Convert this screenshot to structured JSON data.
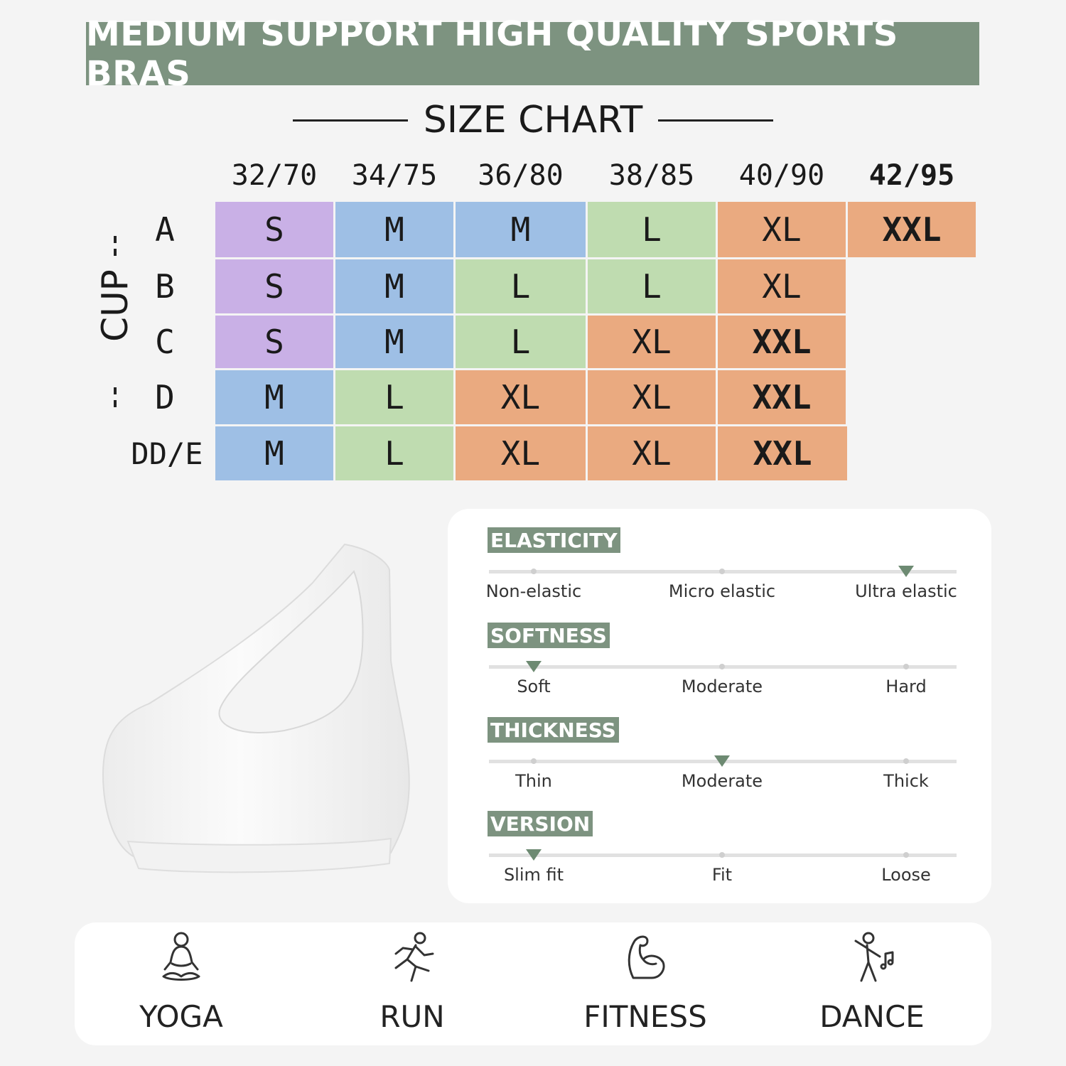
{
  "header": {
    "banner": "MEDIUM SUPPORT HIGH QUALITY SPORTS BRAS",
    "subtitle": "SIZE CHART"
  },
  "size_chart": {
    "axis_label": "CUP",
    "band_sizes": [
      "32/70",
      "34/75",
      "36/80",
      "38/85",
      "40/90",
      "42/95"
    ],
    "rows": [
      {
        "cup": "A",
        "sizes": [
          "S",
          "M",
          "M",
          "L",
          "XL",
          "XXL"
        ]
      },
      {
        "cup": "B",
        "sizes": [
          "S",
          "M",
          "L",
          "L",
          "XL"
        ]
      },
      {
        "cup": "C",
        "sizes": [
          "S",
          "M",
          "L",
          "XL",
          "XXL"
        ]
      },
      {
        "cup": "D",
        "sizes": [
          "M",
          "L",
          "XL",
          "XL",
          "XXL"
        ]
      },
      {
        "cup": "DD/E",
        "sizes": [
          "M",
          "L",
          "XL",
          "XL",
          "XXL"
        ]
      }
    ],
    "size_colors": {
      "S": "#c9b0e6",
      "M": "#9ebfe5",
      "L": "#bfdcb0",
      "XL": "#eaaa80",
      "XXL": "#eaaa80"
    }
  },
  "attributes": [
    {
      "title": "ELASTICITY",
      "options": [
        "Non-elastic",
        "Micro elastic",
        "Ultra elastic"
      ],
      "selected_index": 2
    },
    {
      "title": "SOFTNESS",
      "options": [
        "Soft",
        "Moderate",
        "Hard"
      ],
      "selected_index": 0
    },
    {
      "title": "THICKNESS",
      "options": [
        "Thin",
        "Moderate",
        "Thick"
      ],
      "selected_index": 1
    },
    {
      "title": "VERSION",
      "options": [
        "Slim fit",
        "Fit",
        "Loose"
      ],
      "selected_index": 0
    }
  ],
  "activities": [
    {
      "label": "YOGA",
      "icon": "yoga-icon"
    },
    {
      "label": "RUN",
      "icon": "run-icon"
    },
    {
      "label": "FITNESS",
      "icon": "fitness-icon"
    },
    {
      "label": "DANCE",
      "icon": "dance-icon"
    }
  ],
  "colors": {
    "accent": "#7d9380",
    "marker": "#6d8a72"
  }
}
